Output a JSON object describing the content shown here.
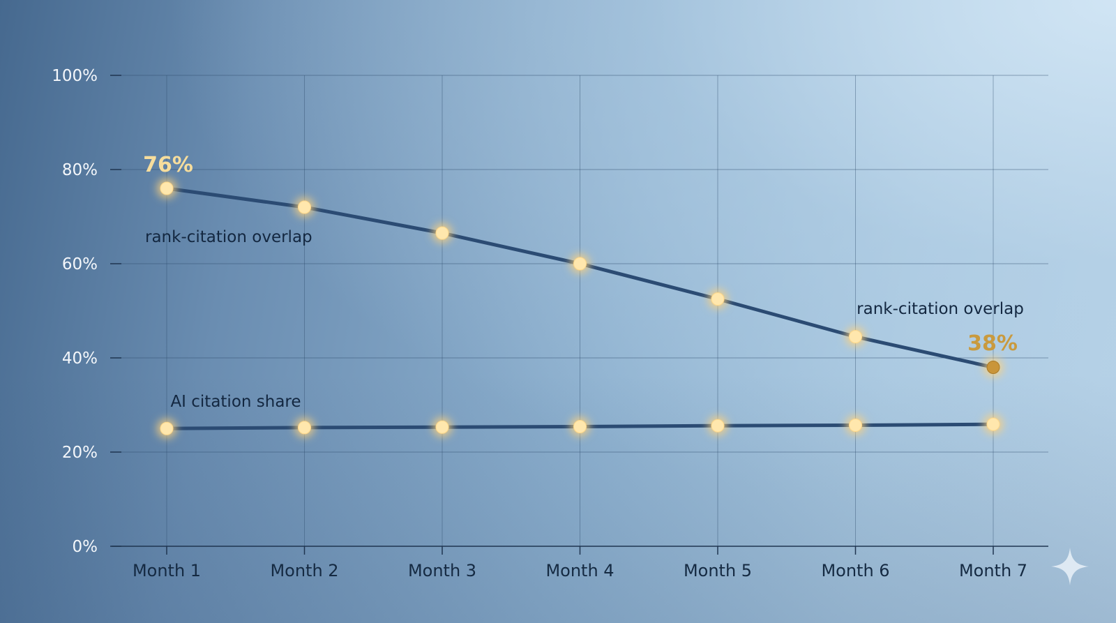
{
  "chart_data": {
    "type": "line",
    "categories": [
      "Month 1",
      "Month 2",
      "Month 3",
      "Month 4",
      "Month 5",
      "Month 6",
      "Month 7"
    ],
    "series": [
      {
        "name": "rank-citation overlap",
        "values": [
          76,
          72,
          66.5,
          60,
          52.5,
          44.5,
          38
        ]
      },
      {
        "name": "AI citation share",
        "values": [
          25,
          25.2,
          25.3,
          25.4,
          25.6,
          25.7,
          25.9
        ]
      }
    ],
    "ylim": [
      0,
      100
    ],
    "y_ticks": [
      0,
      20,
      40,
      60,
      80,
      100
    ],
    "y_tick_labels": [
      "0%",
      "20%",
      "40%",
      "60%",
      "80%",
      "100%"
    ],
    "grid": true,
    "annotations": {
      "start_value": "76%",
      "end_value": "38%",
      "overlap_label_left": "rank-citation overlap",
      "overlap_label_right": "rank-citation overlap",
      "share_label": "AI citation share"
    },
    "colors": {
      "line": "#2b4b73",
      "marker": "#ffe7ad",
      "marker_end": "#c9953a",
      "glow": "#ffd27a",
      "grid": "#2b4868"
    }
  },
  "decoration": {
    "corner_icon": "sparkle-icon"
  }
}
